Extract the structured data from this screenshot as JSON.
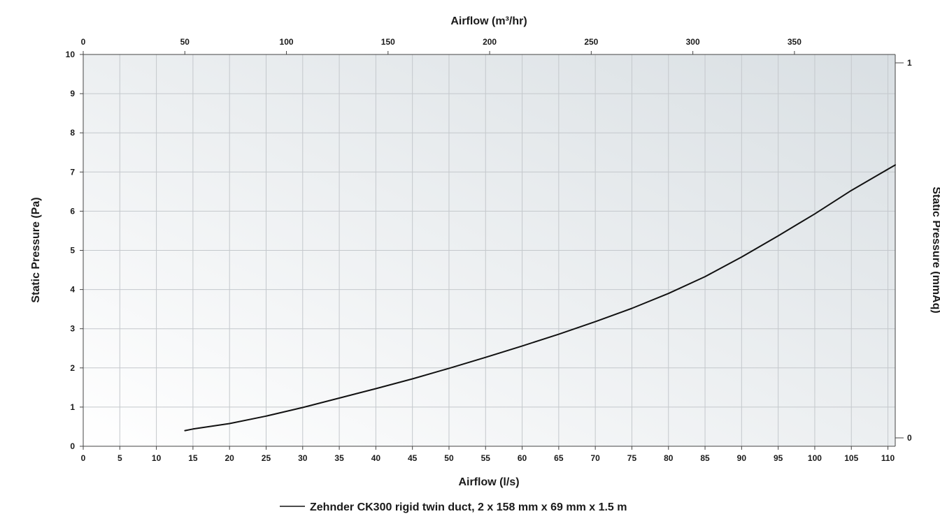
{
  "chart_data": {
    "type": "line",
    "title": "",
    "xlabel": "Airflow (l/s)",
    "x2label": "Airflow (m³/hr)",
    "ylabel": "Static Pressure (Pa)",
    "y2label": "Static Pressure (mmAq)",
    "xlim": [
      0,
      111
    ],
    "x2lim": [
      0,
      399.6
    ],
    "ylim": [
      0,
      10
    ],
    "y2lim": [
      0,
      1
    ],
    "x_ticks": [
      0,
      5,
      10,
      15,
      20,
      25,
      30,
      35,
      40,
      45,
      50,
      55,
      60,
      65,
      70,
      75,
      80,
      85,
      90,
      95,
      100,
      105,
      110
    ],
    "x2_ticks": [
      0,
      50,
      100,
      150,
      200,
      250,
      300,
      350
    ],
    "y_ticks": [
      0,
      1,
      2,
      3,
      4,
      5,
      6,
      7,
      8,
      9,
      10
    ],
    "y2_ticks": [
      0,
      1
    ],
    "grid": true,
    "legend_position": "bottom-center",
    "series": [
      {
        "name": "Zehnder CK300 rigid twin duct, 2 x 158 mm x 69 mm x 1.5 m",
        "color": "#111111",
        "x": [
          13.9,
          15,
          20,
          25,
          30,
          35,
          40,
          45,
          50,
          55,
          60,
          65,
          70,
          75,
          80,
          85,
          90,
          95,
          100,
          105,
          111
        ],
        "y": [
          0.4,
          0.44,
          0.58,
          0.77,
          0.99,
          1.23,
          1.47,
          1.72,
          1.99,
          2.27,
          2.56,
          2.86,
          3.18,
          3.52,
          3.9,
          4.33,
          4.83,
          5.37,
          5.93,
          6.53,
          7.18
        ]
      }
    ]
  }
}
